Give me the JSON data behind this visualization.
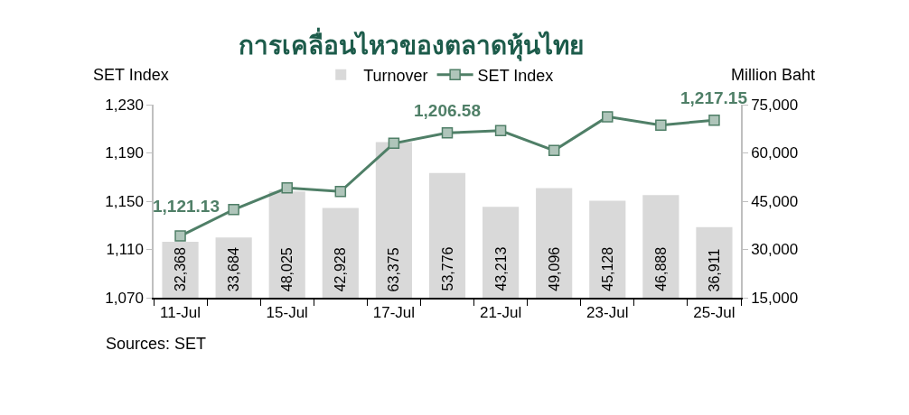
{
  "chart_data": {
    "type": "bar",
    "title": "การเคลื่อนไหวของตลาดหุ้นไทย",
    "ylabel": "SET Index",
    "y2label": "Million Baht",
    "categories": [
      "11-Jul",
      null,
      "15-Jul",
      null,
      "17-Jul",
      null,
      "21-Jul",
      null,
      "23-Jul",
      null,
      "25-Jul"
    ],
    "series": [
      {
        "name": "Turnover",
        "axis": "y2",
        "color": "#d9d9d9",
        "values": [
          32368,
          33684,
          48025,
          42928,
          63375,
          53776,
          43213,
          49096,
          45128,
          46888,
          36911
        ],
        "value_labels": [
          "32,368",
          "33,684",
          "48,025",
          "42,928",
          "63,375",
          "53,776",
          "43,213",
          "49,096",
          "45,128",
          "46,888",
          "36,911"
        ]
      },
      {
        "name": "SET Index",
        "type": "line",
        "axis": "y",
        "color": "#4f7f67",
        "values": [
          1121.13,
          1143,
          1161,
          1158,
          1198,
          1206.58,
          1208.5,
          1192,
          1220,
          1213,
          1217.15
        ],
        "value_labels": [
          "1,121.13",
          null,
          null,
          null,
          null,
          "1,206.58",
          null,
          null,
          null,
          null,
          "1,217.15"
        ]
      }
    ],
    "ylim": [
      1070,
      1230
    ],
    "yticks": [
      {
        "value": 1070,
        "label": "1,070"
      },
      {
        "value": 1110,
        "label": "1,110"
      },
      {
        "value": 1150,
        "label": "1,150"
      },
      {
        "value": 1190,
        "label": "1,190"
      },
      {
        "value": 1230,
        "label": "1,230"
      }
    ],
    "y2lim": [
      15000,
      75000
    ],
    "y2ticks": [
      {
        "value": 15000,
        "label": "15,000"
      },
      {
        "value": 30000,
        "label": "30,000"
      },
      {
        "value": 45000,
        "label": "45,000"
      },
      {
        "value": 60000,
        "label": "60,000"
      },
      {
        "value": 75000,
        "label": "75,000"
      }
    ],
    "annotations": [
      "Sources: SET"
    ],
    "legend": "top",
    "grid": false,
    "marker": "square",
    "line_style": "solid"
  }
}
